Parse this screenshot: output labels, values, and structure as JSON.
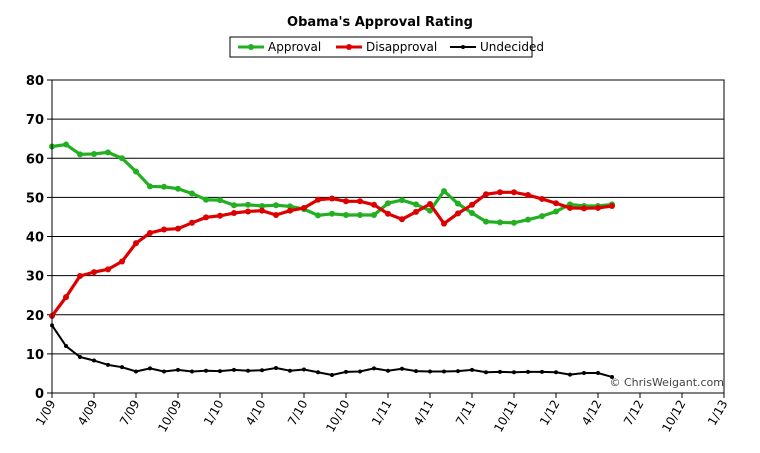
{
  "chart_data": {
    "type": "line",
    "title": "Obama's Approval Rating",
    "xlabel": "",
    "ylabel": "",
    "ylim": [
      0,
      80
    ],
    "yticks": [
      0,
      10,
      20,
      30,
      40,
      50,
      60,
      70,
      80
    ],
    "grid": true,
    "legend": "top-center",
    "x_tick_labels": [
      "1/09",
      "4/09",
      "7/09",
      "10/09",
      "1/10",
      "4/10",
      "7/10",
      "10/10",
      "1/11",
      "4/11",
      "7/11",
      "10/11",
      "1/12",
      "4/12",
      "7/12",
      "10/12",
      "1/13"
    ],
    "series": [
      {
        "name": "Approval",
        "color": "#22b022",
        "values": [
          63.0,
          63.5,
          61.0,
          61.1,
          61.5,
          60.0,
          56.6,
          52.8,
          52.7,
          52.2,
          51.0,
          49.4,
          49.3,
          48.0,
          48.1,
          47.8,
          48.0,
          47.7,
          47.0,
          45.4,
          45.8,
          45.5,
          45.5,
          45.5,
          48.5,
          49.3,
          48.2,
          46.6,
          51.6,
          48.4,
          46.0,
          43.8,
          43.6,
          43.5,
          44.3,
          45.2,
          46.4,
          48.2,
          47.8,
          47.8,
          48.2
        ]
      },
      {
        "name": "Disapproval",
        "color": "#dd0000",
        "values": [
          19.7,
          24.5,
          29.9,
          30.9,
          31.6,
          33.6,
          38.3,
          40.9,
          41.8,
          42.0,
          43.5,
          44.9,
          45.3,
          46.0,
          46.4,
          46.6,
          45.5,
          46.6,
          47.3,
          49.4,
          49.7,
          49.0,
          49.0,
          48.1,
          45.8,
          44.4,
          46.3,
          48.3,
          43.3,
          45.9,
          48.1,
          50.8,
          51.3,
          51.3,
          50.6,
          49.6,
          48.5,
          47.3,
          47.2,
          47.3,
          47.8
        ]
      },
      {
        "name": "Undecided",
        "color": "#000000",
        "values": [
          17.3,
          12.0,
          9.2,
          8.3,
          7.2,
          6.6,
          5.5,
          6.3,
          5.5,
          5.9,
          5.5,
          5.7,
          5.6,
          5.9,
          5.7,
          5.8,
          6.4,
          5.7,
          6.0,
          5.3,
          4.6,
          5.4,
          5.5,
          6.3,
          5.7,
          6.2,
          5.6,
          5.5,
          5.5,
          5.6,
          5.9,
          5.3,
          5.4,
          5.3,
          5.4,
          5.4,
          5.3,
          4.7,
          5.1,
          5.1,
          4.1
        ]
      }
    ]
  },
  "credit": "© ChrisWeigant.com"
}
